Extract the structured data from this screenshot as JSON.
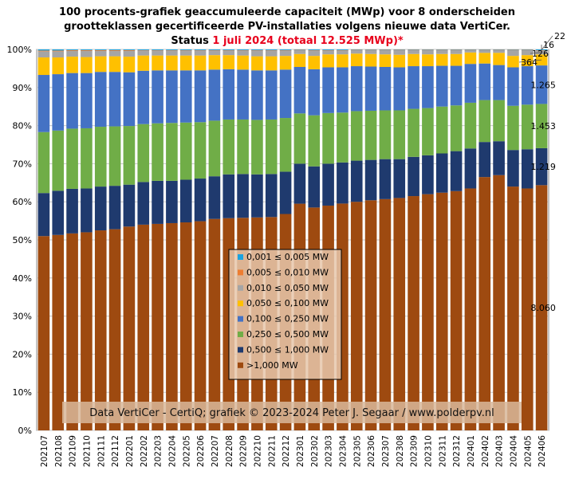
{
  "chart_data": {
    "type": "bar",
    "stacked": true,
    "normalized": true,
    "title_lines": [
      "100 procents-grafiek geaccumuleerde capaciteit (MWp) voor 8 onderscheiden",
      "grootteklassen gecertificeerde PV-installaties volgens nieuwe data VertiCer."
    ],
    "title_status": {
      "prefix": "Status ",
      "date": "1 juli 2024",
      "total": "(totaal 12.525 MWp)*",
      "highlight_color": "#e8001c"
    },
    "ylim": [
      0,
      100
    ],
    "y_ticks": [
      "0%",
      "10%",
      "20%",
      "30%",
      "40%",
      "50%",
      "60%",
      "70%",
      "80%",
      "90%",
      "100%"
    ],
    "grid": true,
    "legend_position": "center",
    "credit": "Data VertiCer - CertiQ; grafiek © 2023-2024 Peter J. Segaar / www.polderpv.nl",
    "categories": [
      "202107",
      "202108",
      "202109",
      "202110",
      "202111",
      "202112",
      "202201",
      "202202",
      "202203",
      "202204",
      "202205",
      "202206",
      "202207",
      "202208",
      "202209",
      "202210",
      "202211",
      "202212",
      "202301",
      "202302",
      "202303",
      "202304",
      "202305",
      "202306",
      "202307",
      "202308",
      "202309",
      "202310",
      "202311",
      "202312",
      "202401",
      "202402",
      "202403",
      "202404",
      "202405",
      "202406"
    ],
    "series": [
      {
        "name": ">1,000 MW",
        "color": "#9e4a10",
        "values": [
          51.0,
          51.3,
          51.7,
          52.0,
          52.5,
          52.8,
          53.5,
          54.0,
          54.2,
          54.4,
          54.6,
          54.9,
          55.5,
          55.7,
          55.8,
          55.9,
          56.0,
          56.8,
          59.5,
          58.5,
          59.0,
          59.6,
          60.0,
          60.4,
          60.7,
          61.0,
          61.5,
          62.0,
          62.4,
          62.8,
          63.5,
          66.5,
          67.0,
          64.0,
          63.5,
          64.3
        ]
      },
      {
        "name": "0,500 ≤ 1,000 MW",
        "color": "#1f3a6e",
        "values": [
          11.3,
          11.6,
          11.7,
          11.5,
          11.5,
          11.4,
          11.0,
          11.2,
          11.3,
          11.1,
          11.2,
          11.2,
          11.2,
          11.5,
          11.5,
          11.3,
          11.3,
          11.1,
          10.5,
          10.8,
          11.0,
          10.8,
          10.8,
          10.6,
          10.5,
          10.2,
          10.3,
          10.2,
          10.3,
          10.5,
          10.5,
          9.2,
          8.9,
          9.6,
          10.3,
          9.7
        ]
      },
      {
        "name": "0,250 ≤ 0,500 MW",
        "color": "#70ad47",
        "values": [
          16.0,
          15.8,
          15.8,
          15.8,
          15.7,
          15.6,
          15.4,
          15.2,
          15.1,
          15.2,
          15.0,
          14.8,
          14.6,
          14.4,
          14.3,
          14.3,
          14.3,
          14.1,
          13.2,
          13.4,
          13.3,
          13.1,
          13.0,
          12.9,
          12.8,
          12.8,
          12.6,
          12.4,
          12.3,
          12.0,
          12.0,
          11.0,
          10.8,
          11.6,
          11.7,
          11.6
        ]
      },
      {
        "name": "0,100 ≤ 0,250 MW",
        "color": "#4472c4",
        "values": [
          15.0,
          14.8,
          14.6,
          14.5,
          14.4,
          14.3,
          14.1,
          14.0,
          13.9,
          13.8,
          13.7,
          13.6,
          13.4,
          13.2,
          13.1,
          13.0,
          12.9,
          12.7,
          12.2,
          12.1,
          12.0,
          11.9,
          11.8,
          11.6,
          11.4,
          11.3,
          11.2,
          11.0,
          10.7,
          10.4,
          10.2,
          9.6,
          9.2,
          10.1,
          10.1,
          10.1
        ]
      },
      {
        "name": "0,050 ≤ 0,100 MW",
        "color": "#ffc000",
        "values": [
          4.6,
          4.4,
          4.3,
          4.2,
          4.1,
          4.1,
          4.1,
          4.0,
          3.9,
          3.9,
          3.9,
          3.9,
          3.8,
          3.7,
          3.7,
          3.7,
          3.7,
          3.6,
          3.4,
          3.5,
          3.4,
          3.4,
          3.3,
          3.3,
          3.3,
          3.3,
          3.2,
          3.1,
          3.1,
          3.1,
          3.0,
          2.8,
          3.2,
          3.0,
          2.9,
          2.9
        ]
      },
      {
        "name": "0,010 ≤ 0,050 MW",
        "color": "#a5a5a5",
        "values": [
          1.6,
          1.6,
          1.5,
          1.6,
          1.4,
          1.4,
          1.5,
          1.3,
          1.3,
          1.3,
          1.3,
          1.3,
          1.2,
          1.2,
          1.3,
          1.5,
          1.5,
          1.4,
          1.0,
          1.4,
          1.0,
          1.0,
          0.9,
          1.0,
          1.1,
          1.2,
          1.0,
          1.1,
          1.0,
          1.0,
          0.6,
          0.7,
          0.7,
          1.5,
          1.3,
          1.0
        ]
      },
      {
        "name": "0,005 ≤ 0,010 MW",
        "color": "#ed7d31",
        "values": [
          0.2,
          0.2,
          0.2,
          0.2,
          0.2,
          0.2,
          0.2,
          0.1,
          0.1,
          0.1,
          0.1,
          0.1,
          0.1,
          0.1,
          0.1,
          0.1,
          0.1,
          0.1,
          0.1,
          0.1,
          0.1,
          0.1,
          0.1,
          0.1,
          0.1,
          0.1,
          0.1,
          0.1,
          0.1,
          0.1,
          0.1,
          0.1,
          0.1,
          0.1,
          0.1,
          0.1
        ]
      },
      {
        "name": "0,001 ≤ 0,005 MW",
        "color": "#1aa3e0",
        "values": [
          0.3,
          0.3,
          0.2,
          0.2,
          0.2,
          0.2,
          0.2,
          0.2,
          0.2,
          0.2,
          0.2,
          0.2,
          0.2,
          0.2,
          0.2,
          0.2,
          0.2,
          0.2,
          0.1,
          0.2,
          0.2,
          0.2,
          0.1,
          0.1,
          0.1,
          0.1,
          0.1,
          0.1,
          0.1,
          0.1,
          0.1,
          0.1,
          0.1,
          0.1,
          0.1,
          0.2
        ]
      }
    ],
    "last_bar_labels": [
      {
        "series": ">1,000 MW",
        "text": "8.060"
      },
      {
        "series": "0,500 ≤ 1,000 MW",
        "text": "1.219"
      },
      {
        "series": "0,250 ≤ 0,500 MW",
        "text": "1.453"
      },
      {
        "series": "0,100 ≤ 0,250 MW",
        "text": "1.265"
      },
      {
        "series": "0,050 ≤ 0,100 MW",
        "text": "364"
      },
      {
        "series": "0,010 ≤ 0,050 MW",
        "text": "126"
      },
      {
        "series": "0,005 ≤ 0,010 MW",
        "text": "16"
      },
      {
        "series": "0,001 ≤ 0,005 MW",
        "text": "22"
      }
    ]
  }
}
